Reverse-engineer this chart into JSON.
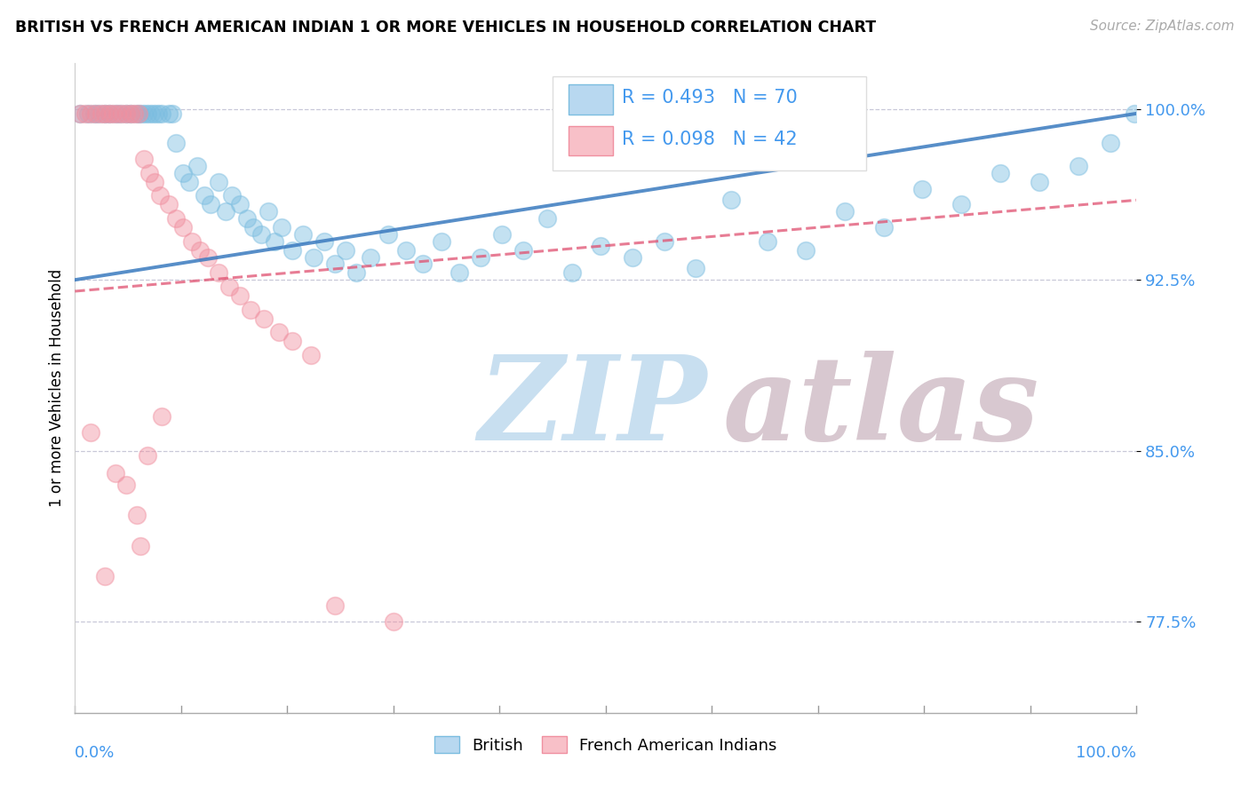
{
  "title": "BRITISH VS FRENCH AMERICAN INDIAN 1 OR MORE VEHICLES IN HOUSEHOLD CORRELATION CHART",
  "source": "Source: ZipAtlas.com",
  "ylabel": "1 or more Vehicles in Household",
  "british_R": 0.493,
  "british_N": 70,
  "french_R": 0.098,
  "french_N": 42,
  "british_color": "#7bbde0",
  "french_color": "#f090a0",
  "trend_british_color": "#3a7abf",
  "trend_french_color": "#e05070",
  "watermark_zip_color": "#c8dff0",
  "watermark_atlas_color": "#d8c8d0",
  "axis_label_color": "#4499ee",
  "grid_color": "#c8c8d8",
  "y_ticks": [
    0.775,
    0.85,
    0.925,
    1.0
  ],
  "y_tick_labels": [
    "77.5%",
    "85.0%",
    "92.5%",
    "100.0%"
  ],
  "xlim": [
    0.0,
    1.0
  ],
  "ylim": [
    0.735,
    1.02
  ],
  "figsize": [
    14.06,
    8.92
  ],
  "dpi": 100,
  "british_x": [
    0.005,
    0.012,
    0.018,
    0.022,
    0.028,
    0.032,
    0.038,
    0.042,
    0.048,
    0.052,
    0.058,
    0.062,
    0.065,
    0.068,
    0.072,
    0.075,
    0.078,
    0.082,
    0.088,
    0.092,
    0.095,
    0.102,
    0.108,
    0.115,
    0.122,
    0.128,
    0.135,
    0.142,
    0.148,
    0.155,
    0.162,
    0.168,
    0.175,
    0.182,
    0.188,
    0.195,
    0.205,
    0.215,
    0.225,
    0.235,
    0.245,
    0.255,
    0.265,
    0.278,
    0.295,
    0.312,
    0.328,
    0.345,
    0.362,
    0.382,
    0.402,
    0.422,
    0.445,
    0.468,
    0.495,
    0.525,
    0.555,
    0.585,
    0.618,
    0.652,
    0.688,
    0.725,
    0.762,
    0.798,
    0.835,
    0.872,
    0.908,
    0.945,
    0.975,
    0.998
  ],
  "british_y": [
    0.998,
    0.998,
    0.998,
    0.998,
    0.998,
    0.998,
    0.998,
    0.998,
    0.998,
    0.998,
    0.998,
    0.998,
    0.998,
    0.998,
    0.998,
    0.998,
    0.998,
    0.998,
    0.998,
    0.998,
    0.985,
    0.972,
    0.968,
    0.975,
    0.962,
    0.958,
    0.968,
    0.955,
    0.962,
    0.958,
    0.952,
    0.948,
    0.945,
    0.955,
    0.942,
    0.948,
    0.938,
    0.945,
    0.935,
    0.942,
    0.932,
    0.938,
    0.928,
    0.935,
    0.945,
    0.938,
    0.932,
    0.942,
    0.928,
    0.935,
    0.945,
    0.938,
    0.952,
    0.928,
    0.94,
    0.935,
    0.942,
    0.93,
    0.96,
    0.942,
    0.938,
    0.955,
    0.948,
    0.965,
    0.958,
    0.972,
    0.968,
    0.975,
    0.985,
    0.998
  ],
  "french_x": [
    0.005,
    0.01,
    0.015,
    0.02,
    0.025,
    0.028,
    0.032,
    0.036,
    0.04,
    0.044,
    0.048,
    0.052,
    0.056,
    0.06,
    0.065,
    0.07,
    0.075,
    0.08,
    0.088,
    0.095,
    0.102,
    0.11,
    0.118,
    0.125,
    0.135,
    0.145,
    0.155,
    0.165,
    0.178,
    0.192,
    0.205,
    0.222,
    0.015,
    0.038,
    0.062,
    0.028,
    0.068,
    0.048,
    0.058,
    0.082,
    0.245,
    0.3
  ],
  "french_y": [
    0.998,
    0.998,
    0.998,
    0.998,
    0.998,
    0.998,
    0.998,
    0.998,
    0.998,
    0.998,
    0.998,
    0.998,
    0.998,
    0.998,
    0.978,
    0.972,
    0.968,
    0.962,
    0.958,
    0.952,
    0.948,
    0.942,
    0.938,
    0.935,
    0.928,
    0.922,
    0.918,
    0.912,
    0.908,
    0.902,
    0.898,
    0.892,
    0.858,
    0.84,
    0.808,
    0.795,
    0.848,
    0.835,
    0.822,
    0.865,
    0.782,
    0.775
  ]
}
